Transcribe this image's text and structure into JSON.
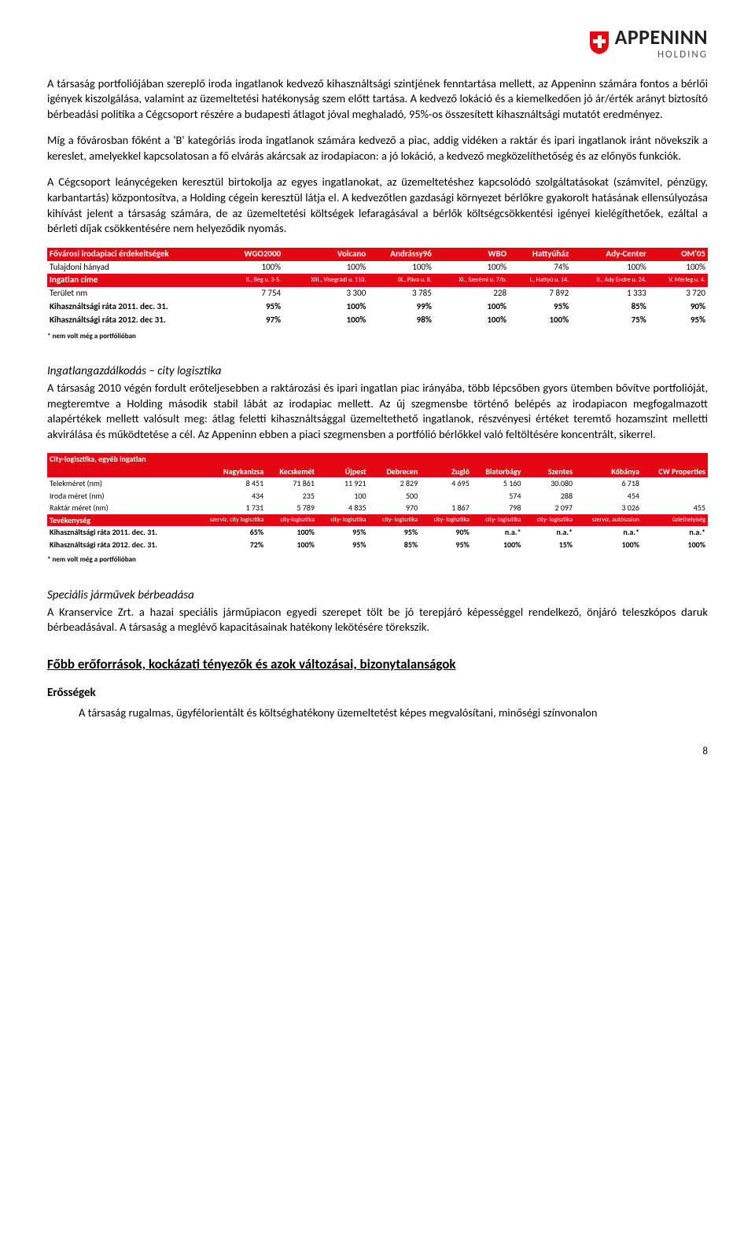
{
  "logo": {
    "brand": "APPENINN",
    "sub": "HOLDING",
    "shield_color": "#e30613",
    "cross_color": "#ffffff"
  },
  "p1": "A társaság portfoliójában szereplő iroda ingatlanok kedvező kihasználtsági szintjének fenntartása mellett, az Appeninn számára fontos a bérlői igények kiszolgálása, valamint az üzemeltetési hatékonyság szem előtt tartása. A kedvező lokáció és a kiemelkedően jó ár/érték arányt biztosító bérbeadási politika a Cégcsoport részére a budapesti átlagot jóval meghaladó, 95%-os összesített kihasználtsági mutatót eredményez.",
  "p2": "Míg a fővárosban főként a 'B' kategóriás iroda ingatlanok számára kedvező a piac, addig vidéken a raktár és ipari ingatlanok iránt növekszik a kereslet, amelyekkel kapcsolatosan a fő elvárás akárcsak az irodapiacon: a jó lokáció, a kedvező megközelíthetőség és az előnyös funkciók.",
  "p3": "A Cégcsoport leánycégeken keresztül birtokolja az egyes ingatlanokat, az üzemeltetéshez kapcsolódó szolgáltatásokat (számvitel, pénzügy, karbantartás) központosítva, a Holding cégein keresztül látja el. A kedvezőtlen gazdasági környezet bérlőkre gyakorolt hatásának ellensúlyozása kihívást jelent a társaság számára, de az üzemeltetési költségek lefaragásával a bérlők költségcsökkentési igényei kielégíthetőek, ezáltal a bérleti díjak csökkentésére nem helyeződik nyomás.",
  "table1": {
    "caption": "Fővárosi irodapiaci érdekeltségek",
    "cols": [
      "WGO2000",
      "Volcano",
      "Andrássy96",
      "WBO",
      "Hattyúház",
      "Ady-Center",
      "OM'05"
    ],
    "rows": [
      {
        "label": "Tulajdoni hányad",
        "vals": [
          "100%",
          "100%",
          "100%",
          "100%",
          "74%",
          "100%",
          "100%"
        ],
        "bold": false
      },
      {
        "label": "Ingatlan címe",
        "vals": [
          "II., Bég u. 3-5.",
          "XIII., Visegrádi u. 110.",
          "IX., Páva u. 8.",
          "XI., Szerémi u. 7/b.",
          "I., Hattyú u. 14.",
          "II., Ady Endre u. 24.",
          "V. Mérleg u. 4."
        ],
        "bold": true,
        "red": true,
        "small": true
      },
      {
        "label": "Terület nm",
        "vals": [
          "7 754",
          "3 300",
          "3 785",
          "228",
          "7 892",
          "1 333",
          "3 720"
        ],
        "bold": false
      },
      {
        "label": "Kihasználtsági ráta 2011. dec. 31.",
        "vals": [
          "95%",
          "100%",
          "99%",
          "100%",
          "95%",
          "85%",
          "90%"
        ],
        "bold": true
      },
      {
        "label": "Kihasználtsági ráta 2012. dec 31.",
        "vals": [
          "97%",
          "100%",
          "98%",
          "100%",
          "100%",
          "75%",
          "95%"
        ],
        "bold": true
      }
    ],
    "footnote": "* nem volt még a portfólióban"
  },
  "sec2_title": "Ingatlangazdálkodás – city logisztika",
  "p4": "A társaság 2010 végén fordult erőteljesebben a raktározási és ipari ingatlan piac irányába, több lépcsőben gyors ütemben bővítve portfolióját, megteremtve a Holding második stabil lábát az irodapiac mellett. Az új szegmensbe történő belépés az irodapiacon megfogalmazott alapértékek mellett valósult meg: átlag feletti kihasználtsággal üzemeltethető ingatlanok, részvényesi értéket teremtő hozamszint melletti akvirálása és működtetése a cél. Az Appeninn ebben a piaci szegmensben a portfólió bérlőkkel való feltöltésére koncentrált, sikerrel.",
  "table2": {
    "caption": "City-logisztika, egyéb ingatlan",
    "cols": [
      "Nagykanizsa",
      "Kecskemét",
      "Újpest",
      "Debrecen",
      "Zugló",
      "Biatorbágy",
      "Szentes",
      "Kőbánya",
      "CW Properties"
    ],
    "rows": [
      {
        "label": "Telekméret (nm)",
        "vals": [
          "8 451",
          "71 861",
          "11 921",
          "2 829",
          "4 695",
          "5 160",
          "30.080",
          "6 718",
          ""
        ]
      },
      {
        "label": "Iroda méret (nm)",
        "vals": [
          "434",
          "235",
          "100",
          "500",
          "",
          "574",
          "288",
          "454",
          ""
        ]
      },
      {
        "label": "Raktár méret (nm)",
        "vals": [
          "1 731",
          "5 789",
          "4 835",
          "970",
          "1 867",
          "798",
          "2 097",
          "3 026",
          "455"
        ]
      },
      {
        "label": "Tevékenység",
        "vals": [
          "szervíz, city logisztika",
          "city-logisztika",
          "city- logisztika",
          "city- logisztika",
          "city- logisztika",
          "city- logisztika",
          "city- logisztika",
          "szervíz, autószalon",
          "üzlethelyiség"
        ],
        "red": true,
        "small": true
      },
      {
        "label": "Kihasználtsági ráta 2011. dec. 31.",
        "vals": [
          "65%",
          "100%",
          "95%",
          "95%",
          "90%",
          "n.a.*",
          "n.a.*",
          "n.a.*",
          "n.a.*"
        ],
        "bold": true
      },
      {
        "label": "Kihasználtsági ráta 2012. dec. 31.",
        "vals": [
          "72%",
          "100%",
          "95%",
          "85%",
          "95%",
          "100%",
          "15%",
          "100%",
          "100%"
        ],
        "bold": true
      }
    ],
    "footnote": "* nem volt még a portfólióban"
  },
  "sec3_title": "Speciális járművek bérbeadása",
  "p5": "A Kranservice Zrt. a hazai speciális járműpiacon egyedi szerepet tölt be jó terepjáró képességgel rendelkező, önjáró teleszkópos daruk bérbeadásával. A társaság a meglévő kapacitásainak hatékony lekötésére törekszik.",
  "h2": "Főbb erőforrások, kockázati tényezők és azok változásai, bizonytalanságok",
  "h4": "Erősségek",
  "p6": "A társaság rugalmas, ügyfélorientált és költséghatékony üzemeltetést képes megvalósítani, minőségi színvonalon",
  "page_num": "8"
}
